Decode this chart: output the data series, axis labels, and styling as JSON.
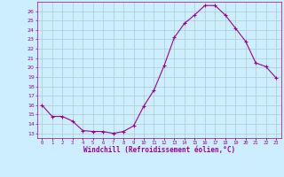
{
  "x": [
    0,
    1,
    2,
    3,
    4,
    5,
    6,
    7,
    8,
    9,
    10,
    11,
    12,
    13,
    14,
    15,
    16,
    17,
    18,
    19,
    20,
    21,
    22,
    23
  ],
  "y": [
    16.0,
    14.8,
    14.8,
    14.3,
    13.3,
    13.2,
    13.2,
    13.0,
    13.2,
    13.8,
    15.9,
    17.6,
    20.2,
    23.2,
    24.7,
    25.6,
    26.6,
    26.6,
    25.6,
    24.2,
    22.8,
    20.5,
    20.1,
    18.9
  ],
  "line_color": "#990099",
  "marker": "+",
  "marker_size": 3,
  "bg_color": "#cceeff",
  "grid_color": "#aacccc",
  "xlim": [
    -0.5,
    23.5
  ],
  "ylim": [
    12.5,
    27.0
  ],
  "yticks": [
    13,
    14,
    15,
    16,
    17,
    18,
    19,
    20,
    21,
    22,
    23,
    24,
    25,
    26
  ],
  "xtick_labels": [
    "0",
    "1",
    "2",
    "3",
    "4",
    "5",
    "6",
    "7",
    "8",
    "9",
    "10",
    "11",
    "12",
    "13",
    "14",
    "15",
    "16",
    "17",
    "18",
    "19",
    "20",
    "21",
    "22",
    "23"
  ],
  "xlabel": "Windchill (Refroidissement éolien,°C)",
  "tick_color": "#990099",
  "label_color": "#990099",
  "spine_color": "#990099"
}
